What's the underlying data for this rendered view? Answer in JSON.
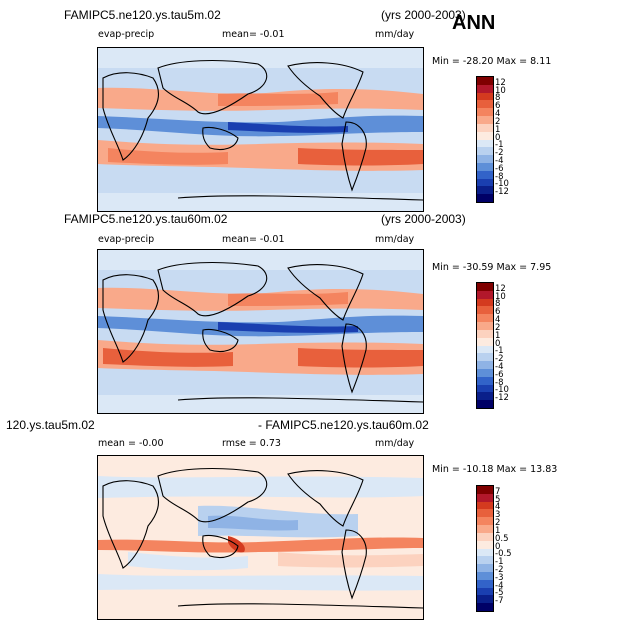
{
  "header": {
    "ann": "ANN"
  },
  "panels": [
    {
      "case_title": "FAMIPC5.ne120.ys.tau5m.02",
      "years": "(yrs 2000-2003)",
      "variable": "evap-precip",
      "mean_text": "mean=   -0.01",
      "units": "mm/day",
      "minmax": "Min = -28.20 Max =   8.11",
      "colorbar_labels": [
        "12",
        "10",
        "8",
        "6",
        "4",
        "2",
        "1",
        "0",
        "-1",
        "-2",
        "-4",
        "-6",
        "-8",
        "-10",
        "-12"
      ]
    },
    {
      "case_title": "FAMIPC5.ne120.ys.tau60m.02",
      "years": "(yrs 2000-2003)",
      "variable": "evap-precip",
      "mean_text": "mean=   -0.01",
      "units": "mm/day",
      "minmax": "Min = -30.59 Max =   7.95",
      "colorbar_labels": [
        "12",
        "10",
        "8",
        "6",
        "4",
        "2",
        "1",
        "0",
        "-1",
        "-2",
        "-4",
        "-6",
        "-8",
        "-10",
        "-12"
      ]
    },
    {
      "case_title": "120.ys.tau5m.02",
      "diff_title": "- FAMIPC5.ne120.ys.tau60m.02",
      "mean_text": "mean =  -0.00",
      "rmse_text": "rmse =   0.73",
      "units": "mm/day",
      "minmax": "Min = -10.18 Max =  13.83",
      "colorbar_labels": [
        "7",
        "5",
        "4",
        "3",
        "2",
        "1",
        "0.5",
        "0",
        "-0.5",
        "-1",
        "-2",
        "-3",
        "-4",
        "-5",
        "-7"
      ]
    }
  ],
  "colors": {
    "abs_scale": [
      "#7f0000",
      "#b2182b",
      "#d43a1f",
      "#e8603c",
      "#f4845f",
      "#f9a98a",
      "#fcd2bf",
      "#fdebe0",
      "#dbe8f6",
      "#b9d1ef",
      "#8fb3e5",
      "#5e8fd8",
      "#3263c9",
      "#1a3fb0",
      "#0a1f8a",
      "#000066"
    ],
    "diff_scale": [
      "#7f0000",
      "#b2182b",
      "#d43a1f",
      "#e8603c",
      "#f4845f",
      "#f9a98a",
      "#fcd2bf",
      "#fdebe0",
      "#dbe8f6",
      "#b9d1ef",
      "#8fb3e5",
      "#5e8fd8",
      "#3263c9",
      "#1a3fb0",
      "#0a1f8a",
      "#000066"
    ]
  }
}
